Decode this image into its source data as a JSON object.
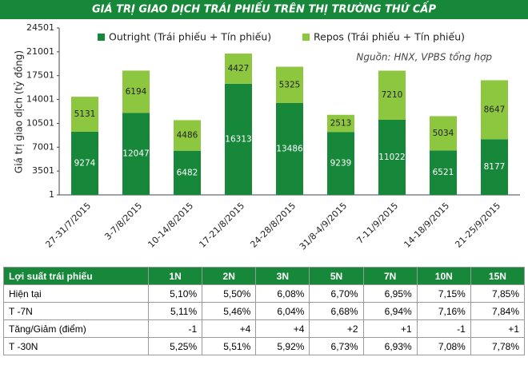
{
  "chart_data": {
    "type": "stacked_bar",
    "title": "GIÁ TRỊ GIAO DỊCH TRÁI PHIẾU TRÊN THỊ TRƯỜNG THỨ CẤP",
    "y_label": "Giá trị giao dịch (tỷ đồng)",
    "annotation": "Nguồn: HNX, VPBS tổng hợp",
    "categories": [
      "27-31/7/2015",
      "3-7/8/2015",
      "10-14/8/2015",
      "17-21/8/2015",
      "24-28/8/2015",
      "31/8-4/9/2015",
      "7-11/9/2015",
      "14-18/9/2015",
      "21-25/9/2015"
    ],
    "series": [
      {
        "name": "Outright (Trái phiếu + Tín phiếu)",
        "color": "#17873a",
        "values": [
          9274,
          12047,
          6482,
          16313,
          13486,
          9239,
          11022,
          6521,
          8177
        ]
      },
      {
        "name": "Repos (Trái phiếu + Tín phiếu)",
        "color": "#8dc63f",
        "values": [
          5131,
          6194,
          4486,
          4427,
          5325,
          2513,
          7210,
          5034,
          8647
        ]
      }
    ],
    "ylim": [
      1,
      24501
    ],
    "yticks": [
      1,
      3501,
      7001,
      10501,
      14001,
      17501,
      21001,
      24501
    ],
    "grid": false
  },
  "table": {
    "header": [
      "Lợi suất trái phiếu",
      "1N",
      "2N",
      "3N",
      "5N",
      "7N",
      "10N",
      "15N"
    ],
    "rows": [
      [
        "Hiện tại",
        "5,10%",
        "5,50%",
        "6,08%",
        "6,70%",
        "6,95%",
        "7,15%",
        "7,85%"
      ],
      [
        "T -7N",
        "5,11%",
        "5,46%",
        "6,04%",
        "6,68%",
        "6,94%",
        "7,16%",
        "7,84%"
      ],
      [
        "Tăng/Giảm (điểm)",
        "-1",
        "+4",
        "+4",
        "+2",
        "+1",
        "-1",
        "+1"
      ],
      [
        "T -30N",
        "5,25%",
        "5,51%",
        "5,92%",
        "6,73%",
        "6,93%",
        "7,08%",
        "7,78%"
      ]
    ]
  }
}
